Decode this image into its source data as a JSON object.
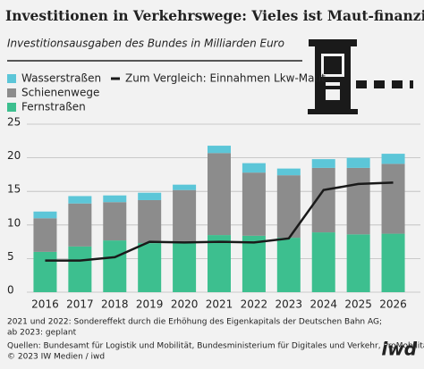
{
  "chart_data": {
    "type": "bar",
    "stacked": true,
    "title": "Investitionen in Verkehrswege: Vieles ist Maut-finanziert",
    "subtitle": "Investitionsausgaben des Bundes in Milliarden Euro",
    "categories": [
      "2016",
      "2017",
      "2018",
      "2019",
      "2020",
      "2021",
      "2022",
      "2023",
      "2024",
      "2025",
      "2026"
    ],
    "series": [
      {
        "name": "Fernstraßen",
        "color": "#3dbf8f",
        "values": [
          6.0,
          6.8,
          7.7,
          7.3,
          7.3,
          8.5,
          8.4,
          8.1,
          8.9,
          8.6,
          8.7
        ]
      },
      {
        "name": "Schienenwege",
        "color": "#8c8c8c",
        "values": [
          5.0,
          6.4,
          5.7,
          6.4,
          7.9,
          12.2,
          9.4,
          9.3,
          9.6,
          9.9,
          10.4
        ]
      },
      {
        "name": "Wasserstraßen",
        "color": "#5cc6d8",
        "values": [
          1.0,
          1.1,
          1.0,
          1.1,
          0.8,
          1.1,
          1.4,
          1.0,
          1.3,
          1.5,
          1.5
        ]
      },
      {
        "name": "Zum Vergleich: Einnahmen Lkw-Maut",
        "type": "line",
        "color": "#1a1a1a",
        "values": [
          4.7,
          4.7,
          5.2,
          7.5,
          7.4,
          7.5,
          7.4,
          8.0,
          15.2,
          16.1,
          16.3
        ]
      }
    ],
    "ylim": [
      0,
      25
    ],
    "yticks": [
      0,
      5,
      10,
      15,
      20,
      25
    ],
    "grid": true
  },
  "footer": {
    "notes": [
      "2021 und 2022: Sondereffekt durch die Erhöhung des Eigenkapitals der Deutschen Bahn AG;",
      "ab 2023: geplant"
    ],
    "sources": "Quellen: Bundesamt für Logistik und Mobilität, Bundesministerium für Digitales und Verkehr, ProMobilität",
    "copyright": "© 2023 IW Medien / iwd",
    "logo": "iwd"
  }
}
